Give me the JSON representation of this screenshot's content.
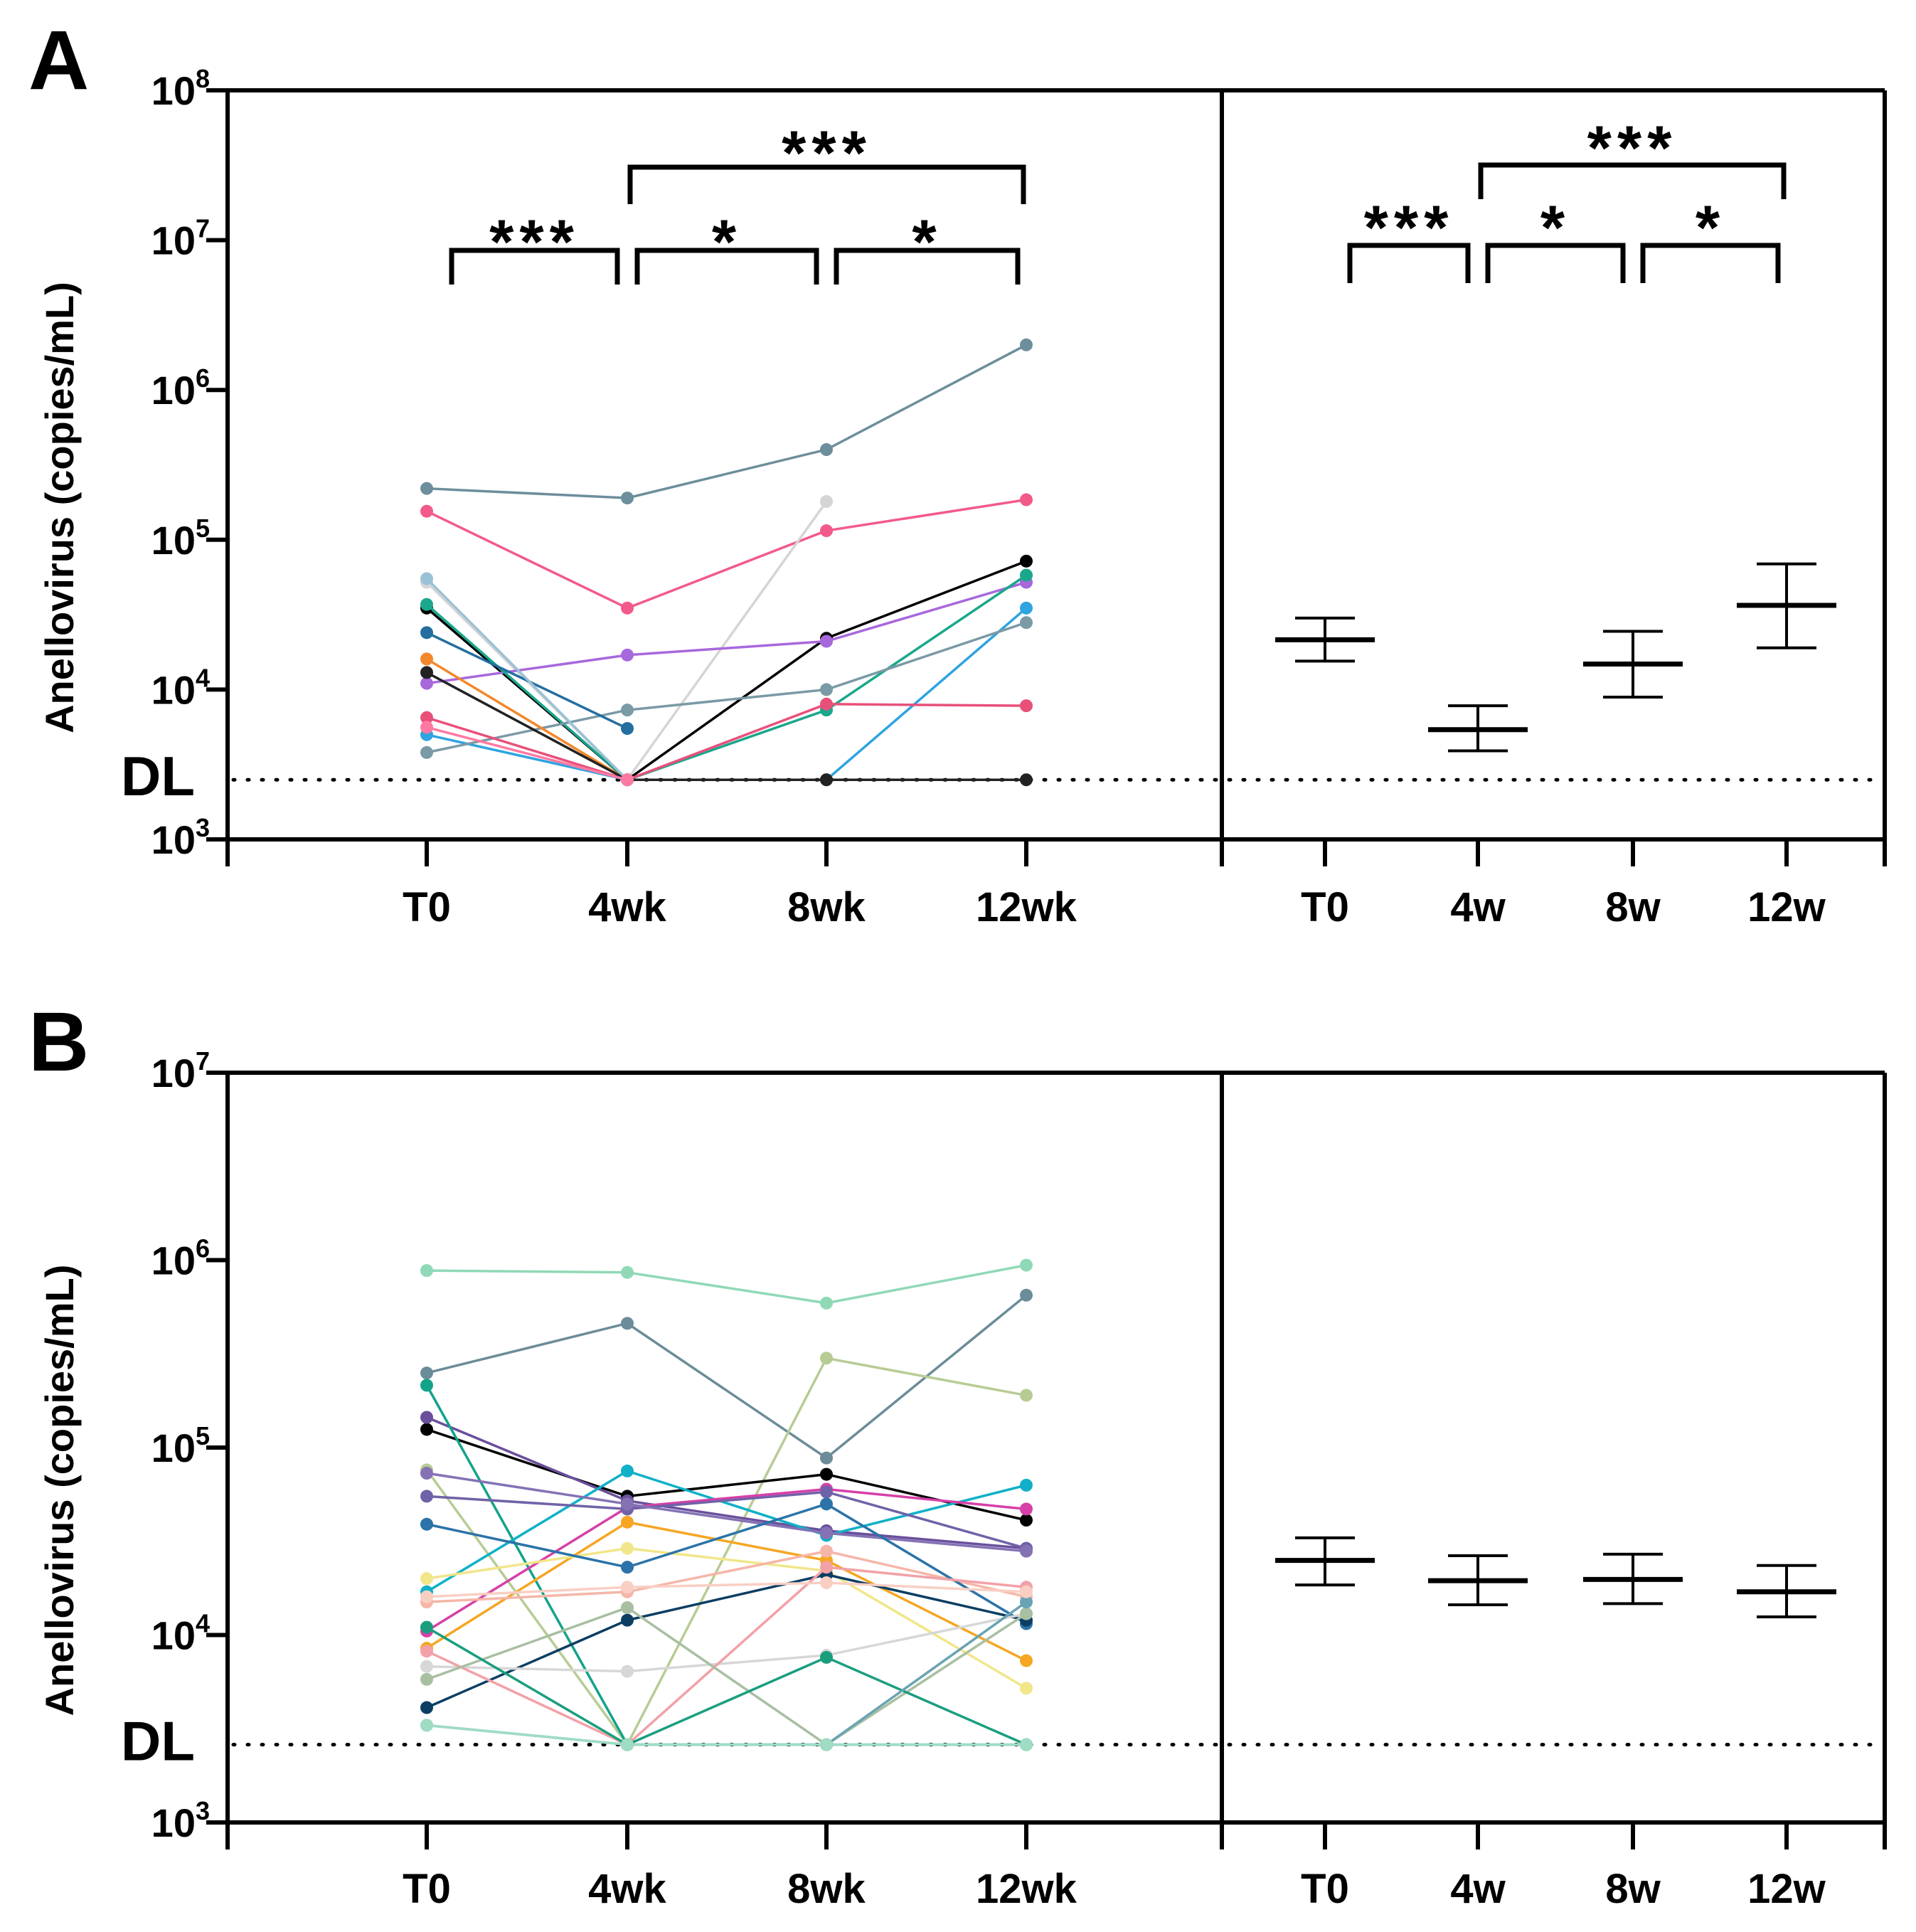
{
  "colors": {
    "axis": "#000000",
    "mean_bar": "#000000",
    "detection_line": "#000000"
  },
  "chart_data": [
    {
      "type": "line",
      "panel_label": "A",
      "ylabel": "Anellovirus (copies/mL)",
      "y_scale": "log10",
      "ylim": [
        1000,
        100000000
      ],
      "y_ticks": [
        {
          "base": "10",
          "exp": "8",
          "value": 100000000
        },
        {
          "base": "10",
          "exp": "7",
          "value": 10000000
        },
        {
          "base": "10",
          "exp": "6",
          "value": 1000000
        },
        {
          "base": "10",
          "exp": "5",
          "value": 100000
        },
        {
          "base": "10",
          "exp": "4",
          "value": 10000
        },
        {
          "base": "10",
          "exp": "3",
          "value": 1000
        }
      ],
      "detection_limit": {
        "label": "DL",
        "value": 2500
      },
      "left": {
        "categories": [
          "T0",
          "4wk",
          "8wk",
          "12wk"
        ],
        "series": [
          {
            "color": "#6d8e9c",
            "values": [
              220000,
              190000,
              400000,
              2000000
            ]
          },
          {
            "color": "#f25a8a",
            "values": [
              155000,
              35000,
              115000,
              185000
            ]
          },
          {
            "color": "#d5d5d5",
            "values": [
              52000,
              2500,
              180000,
              null
            ]
          },
          {
            "color": "#000000",
            "values": [
              35000,
              2500,
              22000,
              72000
            ]
          },
          {
            "color": "#a768dc",
            "values": [
              11000,
              17000,
              21000,
              52000
            ]
          },
          {
            "color": "#1aa78c",
            "values": [
              37000,
              2500,
              7300,
              58000
            ]
          },
          {
            "color": "#2fa4e0",
            "values": [
              5000,
              2500,
              2500,
              35000
            ]
          },
          {
            "color": "#7a9aa6",
            "values": [
              3800,
              7300,
              10000,
              28000
            ]
          },
          {
            "color": "#e8507a",
            "values": [
              6500,
              2500,
              8000,
              7800
            ]
          },
          {
            "color": "#246ea0",
            "values": [
              24000,
              5500,
              null,
              null
            ]
          },
          {
            "color": "#f3872b",
            "values": [
              16000,
              2500,
              2500,
              null
            ]
          },
          {
            "color": "#222222",
            "values": [
              13000,
              2500,
              2500,
              2500
            ]
          },
          {
            "color": "#9bc1d6",
            "values": [
              55000,
              2500,
              null,
              null
            ]
          },
          {
            "color": "#ff7aa2",
            "values": [
              5600,
              2500,
              null,
              null
            ]
          }
        ]
      },
      "right": {
        "categories": [
          "T0",
          "4w",
          "8w",
          "12w"
        ],
        "summary": [
          {
            "mean": 21500,
            "low": 15500,
            "high": 30000
          },
          {
            "mean": 5400,
            "low": 3900,
            "high": 7800
          },
          {
            "mean": 14800,
            "low": 8900,
            "high": 24500
          },
          {
            "mean": 36500,
            "low": 19000,
            "high": 69000
          }
        ]
      },
      "significance": [
        {
          "side": "left",
          "from": 0,
          "to": 1,
          "label": "***"
        },
        {
          "side": "left",
          "from": 1,
          "to": 2,
          "label": "*"
        },
        {
          "side": "left",
          "from": 2,
          "to": 3,
          "label": "*"
        },
        {
          "side": "left",
          "from": 1,
          "to": 3,
          "label": "***"
        },
        {
          "side": "right",
          "from": 0,
          "to": 1,
          "label": "***"
        },
        {
          "side": "right",
          "from": 1,
          "to": 2,
          "label": "*"
        },
        {
          "side": "right",
          "from": 2,
          "to": 3,
          "label": "*"
        },
        {
          "side": "right",
          "from": 1,
          "to": 3,
          "label": "***"
        }
      ]
    },
    {
      "type": "line",
      "panel_label": "B",
      "ylabel": "Anellovirus (copies/mL)",
      "y_scale": "log10",
      "ylim": [
        1000,
        10000000
      ],
      "y_ticks": [
        {
          "base": "10",
          "exp": "7",
          "value": 10000000
        },
        {
          "base": "10",
          "exp": "6",
          "value": 1000000
        },
        {
          "base": "10",
          "exp": "5",
          "value": 100000
        },
        {
          "base": "10",
          "exp": "4",
          "value": 10000
        },
        {
          "base": "10",
          "exp": "3",
          "value": 1000
        }
      ],
      "detection_limit": {
        "label": "DL",
        "value": 2600
      },
      "left": {
        "categories": [
          "T0",
          "4wk",
          "8wk",
          "12wk"
        ],
        "series": [
          {
            "color": "#8fd9b6",
            "values": [
              880000,
              860000,
              590000,
              940000
            ]
          },
          {
            "color": "#6b8c99",
            "values": [
              250000,
              460000,
              88000,
              650000
            ]
          },
          {
            "color": "#b7cc94",
            "values": [
              76000,
              2600,
              300000,
              190000
            ]
          },
          {
            "color": "#000000",
            "values": [
              125000,
              55000,
              72000,
              41000
            ]
          },
          {
            "color": "#6a4f9c",
            "values": [
              145000,
              52000,
              36000,
              29000
            ]
          },
          {
            "color": "#12a389",
            "values": [
              215000,
              2600,
              2600,
              2600
            ]
          },
          {
            "color": "#10b0c8",
            "values": [
              17000,
              75000,
              34000,
              63000
            ]
          },
          {
            "color": "#d640a7",
            "values": [
              10500,
              48000,
              60000,
              47000
            ]
          },
          {
            "color": "#7062a8",
            "values": [
              55000,
              47000,
              58000,
              29000
            ]
          },
          {
            "color": "#8472b4",
            "values": [
              73000,
              50000,
              35000,
              28000
            ]
          },
          {
            "color": "#f5a623",
            "values": [
              8500,
              40000,
              25000,
              7300
            ]
          },
          {
            "color": "#f1e68a",
            "values": [
              20000,
              29000,
              22000,
              5200
            ]
          },
          {
            "color": "#f5b6a8",
            "values": [
              15000,
              17000,
              28000,
              16000
            ]
          },
          {
            "color": "#2b73a8",
            "values": [
              39000,
              23000,
              50000,
              11500
            ]
          },
          {
            "color": "#0c3e63",
            "values": [
              4100,
              12000,
              21000,
              12000
            ]
          },
          {
            "color": "#d7d7d7",
            "values": [
              6800,
              6400,
              7800,
              13000
            ]
          },
          {
            "color": "#f2a1a7",
            "values": [
              8200,
              2600,
              23000,
              18000
            ]
          },
          {
            "color": "#a8bfa2",
            "values": [
              5800,
              14000,
              2600,
              13000
            ]
          },
          {
            "color": "#1a9e7e",
            "values": [
              11000,
              2600,
              7600,
              2600
            ]
          },
          {
            "color": "#6aa3b3",
            "values": [
              3300,
              2600,
              2600,
              15000
            ]
          },
          {
            "color": "#9fdcc3",
            "values": [
              3300,
              2600,
              2600,
              2600
            ]
          },
          {
            "color": "#f9cfc4",
            "values": [
              16000,
              18000,
              19000,
              17000
            ]
          }
        ]
      },
      "right": {
        "categories": [
          "T0",
          "4w",
          "8w",
          "12w"
        ],
        "summary": [
          {
            "mean": 25000,
            "low": 18500,
            "high": 33000
          },
          {
            "mean": 19500,
            "low": 14500,
            "high": 26500
          },
          {
            "mean": 19800,
            "low": 14700,
            "high": 27000
          },
          {
            "mean": 17000,
            "low": 12500,
            "high": 23500
          }
        ]
      },
      "significance": []
    }
  ]
}
